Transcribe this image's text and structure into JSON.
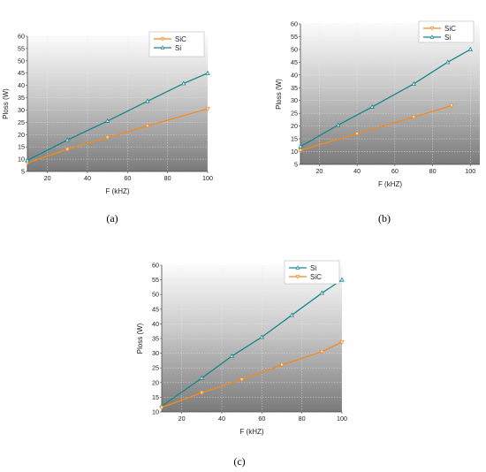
{
  "chart_data": [
    {
      "type": "line",
      "xlabel": "F (kHZ)",
      "ylabel": "Ploss (W)",
      "xlim": [
        10,
        100
      ],
      "ylim": [
        5,
        60
      ],
      "xticks": [
        20,
        40,
        60,
        80,
        100
      ],
      "yticks": [
        5,
        10,
        15,
        20,
        25,
        30,
        35,
        40,
        45,
        50,
        55,
        60
      ],
      "legend_position": "top-right",
      "series": [
        {
          "name": "SiC",
          "color": "#f28a1e",
          "marker": "triangle-down",
          "x": [
            10,
            30,
            50,
            70,
            100
          ],
          "y": [
            8.5,
            14,
            18.8,
            23.5,
            30.5
          ]
        },
        {
          "name": "Si",
          "color": "#17868a",
          "marker": "triangle-up",
          "x": [
            10,
            30,
            50,
            70,
            88,
            100
          ],
          "y": [
            9.5,
            17.8,
            25.5,
            33.6,
            40.8,
            45
          ]
        }
      ],
      "caption": "(a)"
    },
    {
      "type": "line",
      "xlabel": "F (kHZ)",
      "ylabel": "Ploss (W)",
      "xlim": [
        10,
        105
      ],
      "ylim": [
        5,
        60
      ],
      "xticks": [
        20,
        40,
        60,
        80,
        100
      ],
      "yticks": [
        5,
        10,
        15,
        20,
        25,
        30,
        35,
        40,
        45,
        50,
        55,
        60
      ],
      "legend_position": "top-right",
      "series": [
        {
          "name": "SiC",
          "color": "#f28a1e",
          "marker": "triangle-down",
          "x": [
            10,
            40,
            70,
            90
          ],
          "y": [
            10.5,
            17,
            23.5,
            28
          ]
        },
        {
          "name": "Si",
          "color": "#17868a",
          "marker": "triangle-up",
          "x": [
            10,
            30,
            48,
            70,
            88,
            100
          ],
          "y": [
            12,
            20.4,
            27.5,
            36.5,
            45,
            50
          ]
        }
      ],
      "caption": "(b)"
    },
    {
      "type": "line",
      "xlabel": "F (kHZ)",
      "ylabel": "Ploss (W)",
      "xlim": [
        10,
        100
      ],
      "ylim": [
        10,
        60
      ],
      "xticks": [
        20,
        40,
        60,
        80,
        100
      ],
      "yticks": [
        10,
        15,
        20,
        25,
        30,
        35,
        40,
        45,
        50,
        55,
        60
      ],
      "legend_position": "top-right",
      "series": [
        {
          "name": "Si",
          "color": "#17868a",
          "marker": "triangle-up",
          "x": [
            10,
            30,
            45,
            60,
            75,
            90,
            100
          ],
          "y": [
            12,
            21.5,
            29,
            35.5,
            43,
            50.5,
            55
          ]
        },
        {
          "name": "SiC",
          "color": "#f28a1e",
          "marker": "triangle-down",
          "x": [
            10,
            30,
            50,
            70,
            90,
            100
          ],
          "y": [
            11.5,
            16.5,
            21,
            26,
            30.5,
            33.8
          ]
        }
      ],
      "caption": "(c)"
    }
  ]
}
